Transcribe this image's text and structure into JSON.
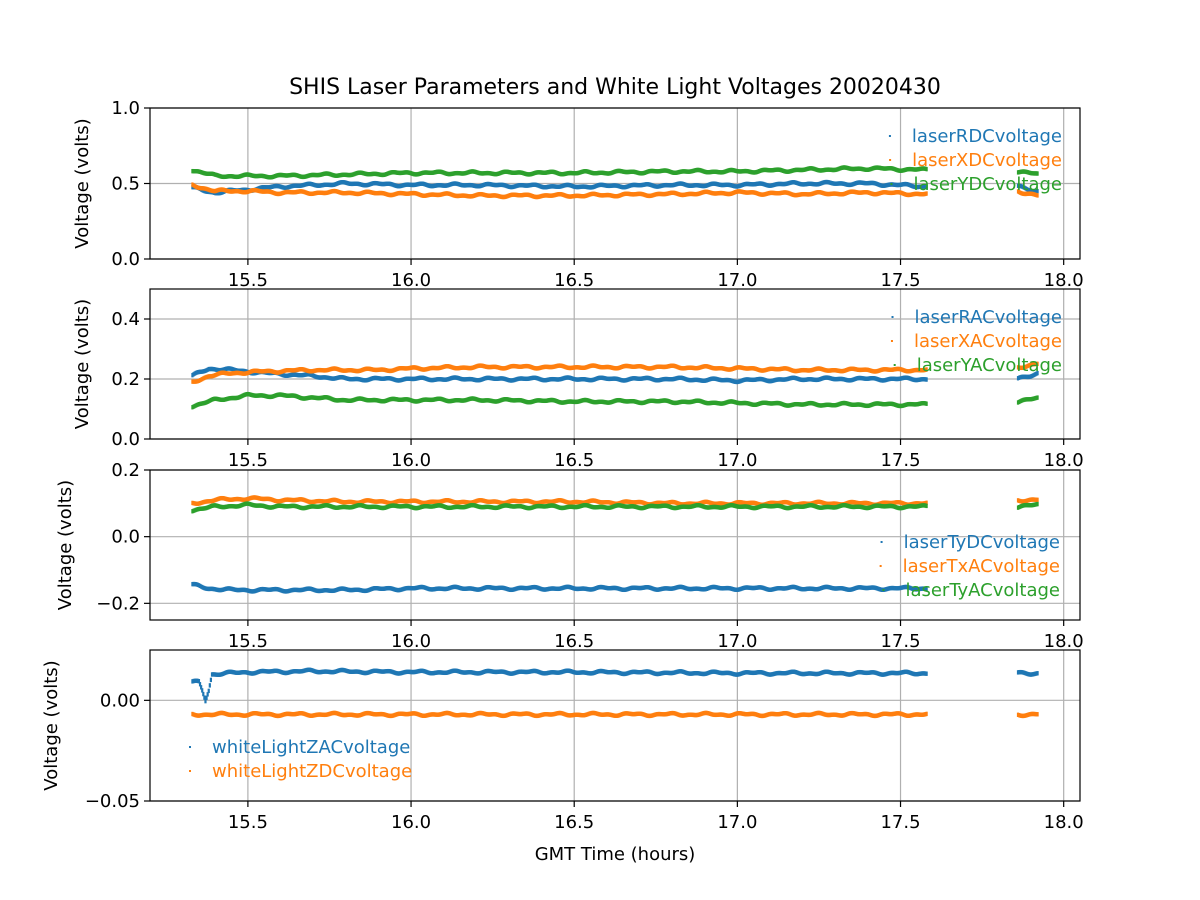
{
  "chart_data": {
    "type": "scatter",
    "title": "SHIS Laser Parameters and White Light Voltages 20020430",
    "xlabel": "GMT Time (hours)",
    "xlim": [
      15.2,
      18.05
    ],
    "xticks": [
      15.5,
      16.0,
      16.5,
      17.0,
      17.5,
      18.0
    ],
    "xtick_labels": [
      "15.5",
      "16.0",
      "16.5",
      "17.0",
      "17.5",
      "18.0"
    ],
    "grid": true,
    "data_segments": [
      [
        15.33,
        17.58
      ],
      [
        17.86,
        17.92
      ]
    ],
    "subplots": [
      {
        "ylabel": "Voltage (volts)",
        "ylim": [
          0.0,
          1.0
        ],
        "yticks": [
          0.0,
          0.5,
          1.0
        ],
        "ytick_labels": [
          "0.0",
          "0.5",
          "1.0"
        ],
        "legend_position": "upper right",
        "series": [
          {
            "name": "laserRDCvoltage",
            "color": "#1f77b4",
            "values": [
              [
                15.33,
                0.47
              ],
              [
                15.4,
                0.44
              ],
              [
                15.5,
                0.46
              ],
              [
                15.6,
                0.48
              ],
              [
                15.8,
                0.5
              ],
              [
                16.0,
                0.49
              ],
              [
                16.2,
                0.49
              ],
              [
                16.5,
                0.48
              ],
              [
                16.8,
                0.49
              ],
              [
                17.0,
                0.49
              ],
              [
                17.2,
                0.5
              ],
              [
                17.4,
                0.5
              ],
              [
                17.58,
                0.48
              ],
              [
                17.86,
                0.48
              ],
              [
                17.92,
                0.45
              ]
            ]
          },
          {
            "name": "laserXDCvoltage",
            "color": "#ff7f0e",
            "values": [
              [
                15.33,
                0.49
              ],
              [
                15.4,
                0.45
              ],
              [
                15.5,
                0.45
              ],
              [
                15.6,
                0.44
              ],
              [
                15.8,
                0.44
              ],
              [
                16.0,
                0.43
              ],
              [
                16.2,
                0.42
              ],
              [
                16.5,
                0.42
              ],
              [
                16.8,
                0.43
              ],
              [
                17.0,
                0.44
              ],
              [
                17.2,
                0.43
              ],
              [
                17.4,
                0.44
              ],
              [
                17.58,
                0.43
              ],
              [
                17.86,
                0.45
              ],
              [
                17.92,
                0.42
              ]
            ]
          },
          {
            "name": "laserYDCvoltage",
            "color": "#2ca02c",
            "values": [
              [
                15.33,
                0.59
              ],
              [
                15.4,
                0.55
              ],
              [
                15.5,
                0.55
              ],
              [
                15.6,
                0.55
              ],
              [
                15.8,
                0.56
              ],
              [
                16.0,
                0.57
              ],
              [
                16.2,
                0.57
              ],
              [
                16.5,
                0.57
              ],
              [
                16.8,
                0.58
              ],
              [
                17.0,
                0.58
              ],
              [
                17.2,
                0.59
              ],
              [
                17.4,
                0.6
              ],
              [
                17.58,
                0.59
              ],
              [
                17.86,
                0.58
              ],
              [
                17.92,
                0.56
              ]
            ]
          }
        ]
      },
      {
        "ylabel": "Voltage (volts)",
        "ylim": [
          0.0,
          0.5
        ],
        "yticks": [
          0.0,
          0.2,
          0.4
        ],
        "ytick_labels": [
          "0.0",
          "0.2",
          "0.4"
        ],
        "legend_position": "upper right",
        "series": [
          {
            "name": "laserRACvoltage",
            "color": "#1f77b4",
            "values": [
              [
                15.33,
                0.21
              ],
              [
                15.38,
                0.235
              ],
              [
                15.45,
                0.23
              ],
              [
                15.55,
                0.22
              ],
              [
                15.7,
                0.21
              ],
              [
                15.8,
                0.2
              ],
              [
                16.0,
                0.2
              ],
              [
                16.2,
                0.2
              ],
              [
                16.5,
                0.2
              ],
              [
                16.8,
                0.2
              ],
              [
                17.0,
                0.195
              ],
              [
                17.2,
                0.2
              ],
              [
                17.4,
                0.2
              ],
              [
                17.58,
                0.2
              ],
              [
                17.86,
                0.2
              ],
              [
                17.92,
                0.22
              ]
            ]
          },
          {
            "name": "laserXACvoltage",
            "color": "#ff7f0e",
            "values": [
              [
                15.33,
                0.19
              ],
              [
                15.38,
                0.21
              ],
              [
                15.45,
                0.22
              ],
              [
                15.55,
                0.225
              ],
              [
                15.7,
                0.23
              ],
              [
                15.9,
                0.23
              ],
              [
                16.0,
                0.235
              ],
              [
                16.2,
                0.24
              ],
              [
                16.5,
                0.24
              ],
              [
                16.8,
                0.24
              ],
              [
                17.0,
                0.235
              ],
              [
                17.2,
                0.23
              ],
              [
                17.4,
                0.23
              ],
              [
                17.58,
                0.23
              ],
              [
                17.86,
                0.24
              ],
              [
                17.92,
                0.25
              ]
            ]
          },
          {
            "name": "laserYACvoltage",
            "color": "#2ca02c",
            "values": [
              [
                15.33,
                0.11
              ],
              [
                15.4,
                0.13
              ],
              [
                15.5,
                0.145
              ],
              [
                15.6,
                0.145
              ],
              [
                15.8,
                0.13
              ],
              [
                16.0,
                0.13
              ],
              [
                16.2,
                0.13
              ],
              [
                16.5,
                0.125
              ],
              [
                16.8,
                0.125
              ],
              [
                17.0,
                0.12
              ],
              [
                17.2,
                0.115
              ],
              [
                17.4,
                0.115
              ],
              [
                17.58,
                0.115
              ],
              [
                17.86,
                0.125
              ],
              [
                17.92,
                0.135
              ]
            ]
          }
        ]
      },
      {
        "ylabel": "Voltage (volts)",
        "ylim": [
          -0.25,
          0.2
        ],
        "yticks": [
          -0.2,
          0.0,
          0.2
        ],
        "ytick_labels": [
          "−0.2",
          "0.0",
          "0.2"
        ],
        "legend_position": "lower right",
        "series": [
          {
            "name": "laserTyDCvoltage",
            "color": "#1f77b4",
            "values": [
              [
                15.33,
                -0.145
              ],
              [
                15.38,
                -0.155
              ],
              [
                15.45,
                -0.16
              ],
              [
                15.6,
                -0.16
              ],
              [
                15.8,
                -0.16
              ],
              [
                16.0,
                -0.155
              ],
              [
                16.3,
                -0.155
              ],
              [
                16.5,
                -0.155
              ],
              [
                16.8,
                -0.155
              ],
              [
                17.0,
                -0.155
              ],
              [
                17.3,
                -0.155
              ],
              [
                17.58,
                -0.155
              ]
            ]
          },
          {
            "name": "laserTxACvoltage",
            "color": "#ff7f0e",
            "values": [
              [
                15.33,
                0.1
              ],
              [
                15.4,
                0.11
              ],
              [
                15.5,
                0.115
              ],
              [
                15.6,
                0.11
              ],
              [
                15.8,
                0.105
              ],
              [
                16.0,
                0.105
              ],
              [
                16.5,
                0.105
              ],
              [
                16.8,
                0.1
              ],
              [
                17.0,
                0.1
              ],
              [
                17.3,
                0.1
              ],
              [
                17.58,
                0.1
              ],
              [
                17.86,
                0.11
              ],
              [
                17.92,
                0.11
              ]
            ]
          },
          {
            "name": "laserTyACvoltage",
            "color": "#2ca02c",
            "values": [
              [
                15.33,
                0.08
              ],
              [
                15.4,
                0.09
              ],
              [
                15.5,
                0.095
              ],
              [
                15.6,
                0.09
              ],
              [
                15.8,
                0.09
              ],
              [
                16.0,
                0.09
              ],
              [
                16.5,
                0.09
              ],
              [
                16.8,
                0.09
              ],
              [
                17.0,
                0.09
              ],
              [
                17.3,
                0.09
              ],
              [
                17.58,
                0.09
              ],
              [
                17.86,
                0.09
              ],
              [
                17.92,
                0.095
              ]
            ]
          }
        ]
      },
      {
        "ylabel": "Voltage (volts)",
        "ylim": [
          -0.05,
          0.025
        ],
        "yticks": [
          -0.05,
          0.0
        ],
        "ytick_labels": [
          "−0.05",
          "0.00"
        ],
        "legend_position": "lower left",
        "series": [
          {
            "name": "whiteLightZACvoltage",
            "color": "#1f77b4",
            "values": [
              [
                15.33,
                0.009
              ],
              [
                15.35,
                0.009
              ],
              [
                15.36,
                0.005
              ],
              [
                15.37,
                0.0
              ],
              [
                15.38,
                0.005
              ],
              [
                15.39,
                0.013
              ],
              [
                15.5,
                0.014
              ],
              [
                15.7,
                0.0145
              ],
              [
                16.0,
                0.014
              ],
              [
                16.5,
                0.014
              ],
              [
                17.0,
                0.0135
              ],
              [
                17.58,
                0.0135
              ],
              [
                17.86,
                0.0135
              ],
              [
                17.92,
                0.0135
              ]
            ]
          },
          {
            "name": "whiteLightZDCvoltage",
            "color": "#ff7f0e",
            "values": [
              [
                15.33,
                -0.007
              ],
              [
                15.6,
                -0.007
              ],
              [
                16.0,
                -0.007
              ],
              [
                16.5,
                -0.007
              ],
              [
                17.0,
                -0.007
              ],
              [
                17.58,
                -0.007
              ],
              [
                17.86,
                -0.007
              ],
              [
                17.92,
                -0.007
              ]
            ]
          }
        ]
      }
    ]
  }
}
